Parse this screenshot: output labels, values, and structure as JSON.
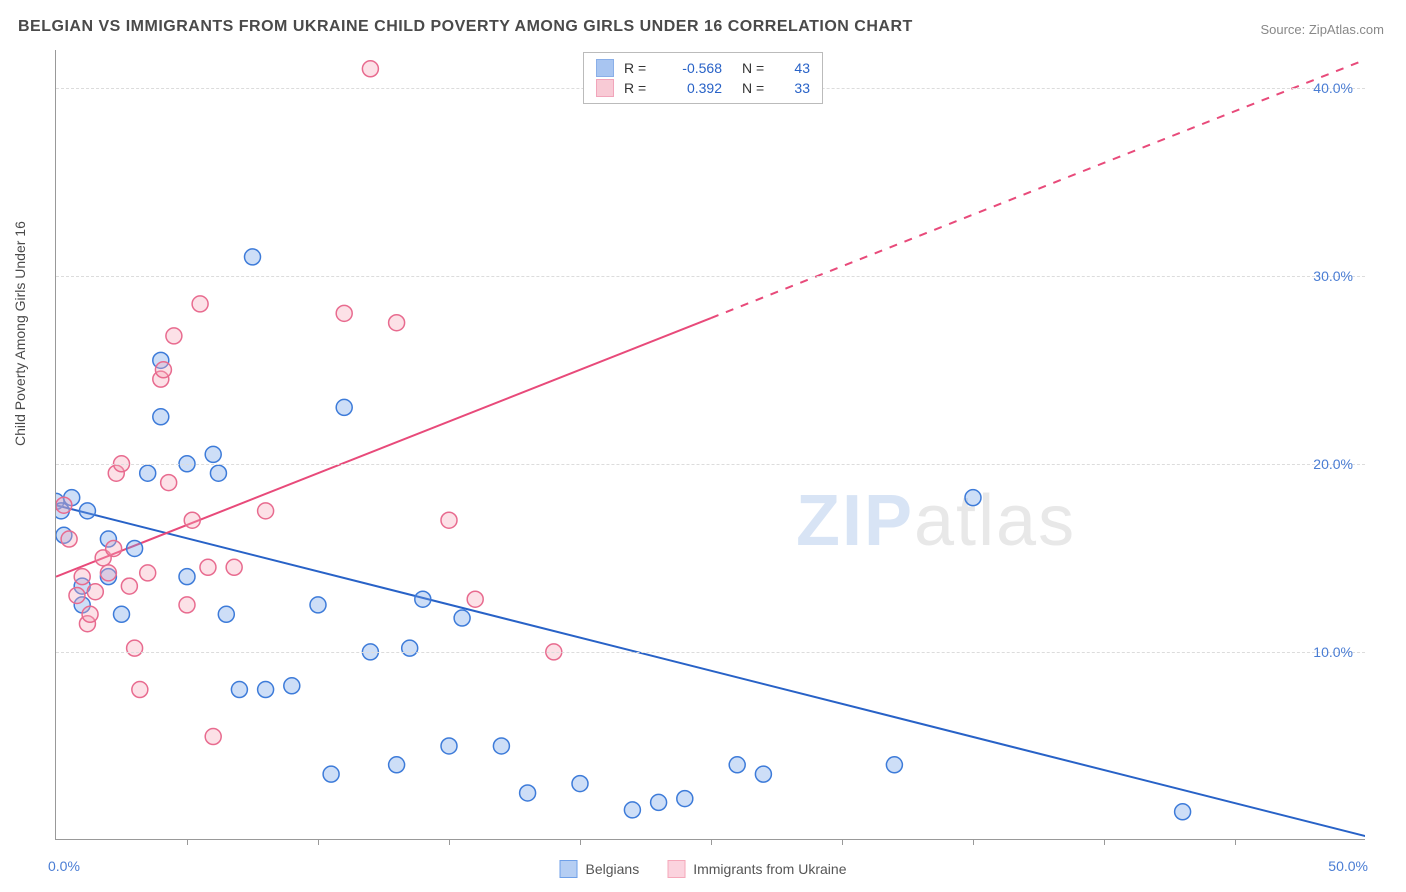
{
  "title": "BELGIAN VS IMMIGRANTS FROM UKRAINE CHILD POVERTY AMONG GIRLS UNDER 16 CORRELATION CHART",
  "source_label": "Source: ",
  "source_value": "ZipAtlas.com",
  "ylabel": "Child Poverty Among Girls Under 16",
  "watermark_bold": "ZIP",
  "watermark_rest": "atlas",
  "chart": {
    "type": "scatter-with-regression",
    "background_color": "#ffffff",
    "grid_color": "#dcdcdc",
    "axis_color": "#999999",
    "xlim": [
      0,
      50
    ],
    "ylim": [
      0,
      42
    ],
    "x_tick_positions": [
      5,
      10,
      15,
      20,
      25,
      30,
      35,
      40,
      45
    ],
    "x_tick_label_min": "0.0%",
    "x_tick_label_max": "50.0%",
    "y_grid": [
      {
        "val": 10,
        "label": "10.0%"
      },
      {
        "val": 20,
        "label": "20.0%"
      },
      {
        "val": 30,
        "label": "30.0%"
      },
      {
        "val": 40,
        "label": "40.0%"
      }
    ],
    "marker_radius": 8,
    "marker_stroke_width": 1.5,
    "marker_fill_opacity": 0.35,
    "series": [
      {
        "name": "Belgians",
        "color": "#6fa0e8",
        "stroke": "#3d7bd9",
        "correlation_R": "-0.568",
        "correlation_N": "43",
        "regression": {
          "x0": 0,
          "y0": 17.8,
          "x1": 50,
          "y1": 0.2,
          "solid_to_x": 50,
          "line_color": "#2862c7"
        },
        "points": [
          [
            0,
            18
          ],
          [
            0.2,
            17.5
          ],
          [
            0.3,
            16.2
          ],
          [
            0.6,
            18.2
          ],
          [
            1,
            13.5
          ],
          [
            1,
            12.5
          ],
          [
            1.2,
            17.5
          ],
          [
            2,
            16
          ],
          [
            2,
            14
          ],
          [
            2.5,
            12
          ],
          [
            3,
            15.5
          ],
          [
            3.5,
            19.5
          ],
          [
            4,
            22.5
          ],
          [
            4,
            25.5
          ],
          [
            5,
            20
          ],
          [
            5,
            14
          ],
          [
            6,
            20.5
          ],
          [
            6.2,
            19.5
          ],
          [
            6.5,
            12
          ],
          [
            7,
            8
          ],
          [
            7.5,
            31
          ],
          [
            8,
            8
          ],
          [
            9,
            8.2
          ],
          [
            10,
            12.5
          ],
          [
            10.5,
            3.5
          ],
          [
            11,
            23
          ],
          [
            12,
            10
          ],
          [
            13,
            4
          ],
          [
            13.5,
            10.2
          ],
          [
            14,
            12.8
          ],
          [
            15,
            5
          ],
          [
            15.5,
            11.8
          ],
          [
            17,
            5
          ],
          [
            18,
            2.5
          ],
          [
            20,
            3
          ],
          [
            22,
            1.6
          ],
          [
            23,
            2
          ],
          [
            24,
            2.2
          ],
          [
            26,
            4
          ],
          [
            27,
            3.5
          ],
          [
            32,
            4
          ],
          [
            35,
            18.2
          ],
          [
            43,
            1.5
          ]
        ]
      },
      {
        "name": "Immigrants from Ukraine",
        "color": "#f5a8ba",
        "stroke": "#e86b8f",
        "correlation_R": "0.392",
        "correlation_N": "33",
        "regression": {
          "x0": 0,
          "y0": 14,
          "x1": 50,
          "y1": 41.5,
          "solid_to_x": 25,
          "line_color": "#e84a7a"
        },
        "points": [
          [
            0.3,
            17.8
          ],
          [
            0.5,
            16
          ],
          [
            0.8,
            13
          ],
          [
            1,
            14
          ],
          [
            1.2,
            11.5
          ],
          [
            1.3,
            12
          ],
          [
            1.5,
            13.2
          ],
          [
            1.8,
            15
          ],
          [
            2,
            14.2
          ],
          [
            2.2,
            15.5
          ],
          [
            2.3,
            19.5
          ],
          [
            2.5,
            20
          ],
          [
            2.8,
            13.5
          ],
          [
            3,
            10.2
          ],
          [
            3.2,
            8
          ],
          [
            3.5,
            14.2
          ],
          [
            4,
            24.5
          ],
          [
            4.1,
            25
          ],
          [
            4.3,
            19
          ],
          [
            4.5,
            26.8
          ],
          [
            5,
            12.5
          ],
          [
            5.2,
            17
          ],
          [
            5.5,
            28.5
          ],
          [
            5.8,
            14.5
          ],
          [
            6,
            5.5
          ],
          [
            6.8,
            14.5
          ],
          [
            8,
            17.5
          ],
          [
            11,
            28
          ],
          [
            12,
            41
          ],
          [
            13,
            27.5
          ],
          [
            15,
            17
          ],
          [
            16,
            12.8
          ],
          [
            19,
            10
          ]
        ]
      }
    ]
  },
  "legend_bottom": [
    {
      "label": "Belgians",
      "fill": "#b5cef3",
      "stroke": "#6fa0e8"
    },
    {
      "label": "Immigrants from Ukraine",
      "fill": "#fbd3de",
      "stroke": "#f5a8ba"
    }
  ],
  "tick_font_color": "#4a7dd4",
  "label_fontsize": 14,
  "title_fontsize": 16
}
